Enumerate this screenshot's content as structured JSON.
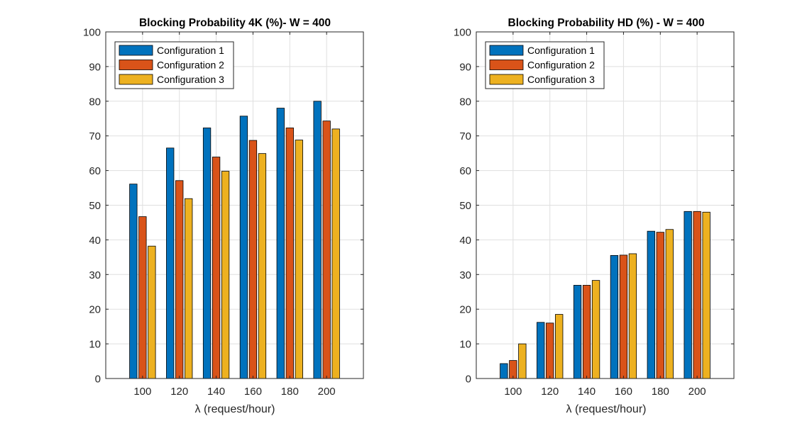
{
  "colors": {
    "series": [
      "#0072BD",
      "#D95319",
      "#EDB120"
    ],
    "grid": "#DFDFDF",
    "axis": "#262626",
    "background": "#FFFFFF"
  },
  "chart_data": [
    {
      "type": "bar",
      "title": "Blocking Probability 4K (%)- W = 400",
      "xlabel": "λ (request/hour)",
      "ylabel": "",
      "categories": [
        "100",
        "120",
        "140",
        "160",
        "180",
        "200"
      ],
      "ylim": [
        0,
        100
      ],
      "yticks": [
        "0",
        "10",
        "20",
        "30",
        "40",
        "50",
        "60",
        "70",
        "80",
        "90",
        "100"
      ],
      "grid": true,
      "legend_position": "top-left",
      "series": [
        {
          "name": "Configuration 1",
          "values": [
            56.1,
            66.5,
            72.3,
            75.7,
            78.0,
            80.0
          ]
        },
        {
          "name": "Configuration 2",
          "values": [
            46.7,
            57.1,
            63.9,
            68.7,
            72.3,
            74.3
          ]
        },
        {
          "name": "Configuration 3",
          "values": [
            38.2,
            51.9,
            59.8,
            64.9,
            68.8,
            72.0
          ]
        }
      ]
    },
    {
      "type": "bar",
      "title": "Blocking Probability HD (%) - W = 400",
      "xlabel": "λ (request/hour)",
      "ylabel": "",
      "categories": [
        "100",
        "120",
        "140",
        "160",
        "180",
        "200"
      ],
      "ylim": [
        0,
        100
      ],
      "yticks": [
        "0",
        "10",
        "20",
        "30",
        "40",
        "50",
        "60",
        "70",
        "80",
        "90",
        "100"
      ],
      "grid": true,
      "legend_position": "top-left",
      "series": [
        {
          "name": "Configuration 1",
          "values": [
            4.3,
            16.2,
            26.9,
            35.5,
            42.5,
            48.2
          ]
        },
        {
          "name": "Configuration 2",
          "values": [
            5.2,
            16.0,
            26.9,
            35.6,
            42.2,
            48.2
          ]
        },
        {
          "name": "Configuration 3",
          "values": [
            10.0,
            18.5,
            28.3,
            36.0,
            43.0,
            48.0
          ]
        }
      ]
    }
  ]
}
